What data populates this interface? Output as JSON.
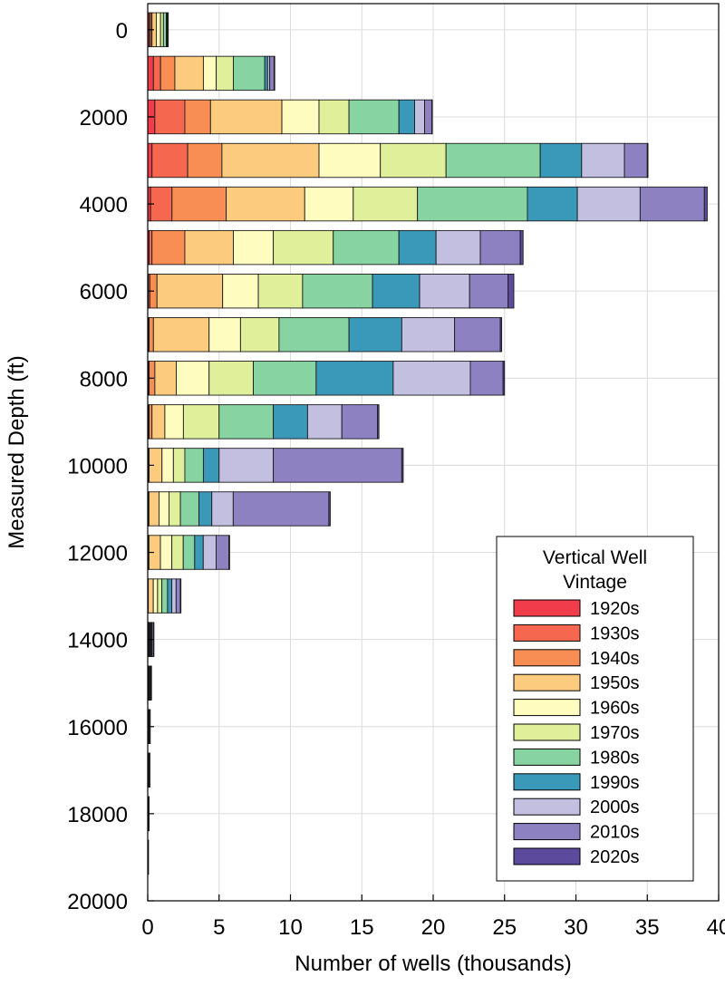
{
  "chart_data": {
    "type": "bar",
    "orientation": "horizontal",
    "stacked": true,
    "xlabel": "Number of wells (thousands)",
    "ylabel": "Measured Depth (ft)",
    "xlim": [
      0,
      40
    ],
    "ylim": [
      20000,
      -600
    ],
    "x_ticks": [
      "0",
      "5",
      "10",
      "15",
      "20",
      "25",
      "30",
      "35",
      "40"
    ],
    "y_ticks": [
      "0",
      "2000",
      "4000",
      "6000",
      "8000",
      "10000",
      "12000",
      "14000",
      "16000",
      "18000",
      "20000"
    ],
    "grid": true,
    "legend": {
      "title_lines": [
        "Vertical Well",
        "Vintage"
      ],
      "position": "bottom-right"
    },
    "depths": [
      0,
      1000,
      2000,
      3000,
      4000,
      5000,
      6000,
      7000,
      8000,
      9000,
      10000,
      11000,
      12000,
      13000,
      14000,
      15000,
      16000,
      17000,
      18000,
      19000,
      20000
    ],
    "series": [
      {
        "name": "1920s",
        "color": "#f03c4b",
        "values": [
          0.1,
          0.4,
          0.5,
          0.3,
          0.2,
          0.1,
          0.05,
          0.05,
          0.05,
          0.05,
          0.02,
          0.02,
          0.02,
          0.01,
          0.01,
          0.01,
          0.0,
          0.0,
          0.0,
          0.0,
          0.0
        ]
      },
      {
        "name": "1930s",
        "color": "#f5684f",
        "values": [
          0.1,
          0.5,
          2.1,
          2.5,
          1.5,
          0.2,
          0.1,
          0.05,
          0.05,
          0.05,
          0.02,
          0.02,
          0.02,
          0.01,
          0.01,
          0.01,
          0.0,
          0.0,
          0.0,
          0.0,
          0.0
        ]
      },
      {
        "name": "1940s",
        "color": "#f98e55",
        "values": [
          0.1,
          1.0,
          1.8,
          2.4,
          3.8,
          2.3,
          0.5,
          0.3,
          0.4,
          0.2,
          0.06,
          0.05,
          0.05,
          0.02,
          0.02,
          0.01,
          0.0,
          0.0,
          0.0,
          0.0,
          0.0
        ]
      },
      {
        "name": "1950s",
        "color": "#fdcb7e",
        "values": [
          0.3,
          2.0,
          5.0,
          6.8,
          5.5,
          3.4,
          4.6,
          3.9,
          1.5,
          0.9,
          0.9,
          0.7,
          0.8,
          0.35,
          0.04,
          0.02,
          0.02,
          0.01,
          0.0,
          0.0,
          0.0
        ]
      },
      {
        "name": "1960s",
        "color": "#fefcbf",
        "values": [
          0.3,
          0.9,
          2.6,
          4.3,
          3.4,
          2.8,
          2.5,
          2.2,
          2.3,
          1.3,
          0.8,
          0.7,
          0.8,
          0.3,
          0.03,
          0.02,
          0.01,
          0.01,
          0.0,
          0.0,
          0.0
        ]
      },
      {
        "name": "1970s",
        "color": "#dfef9a",
        "values": [
          0.2,
          1.2,
          2.1,
          4.6,
          4.5,
          4.2,
          3.1,
          2.7,
          3.1,
          2.5,
          0.8,
          0.8,
          0.8,
          0.3,
          0.04,
          0.02,
          0.01,
          0.01,
          0.0,
          0.0,
          0.0
        ]
      },
      {
        "name": "1980s",
        "color": "#88d3a2",
        "values": [
          0.2,
          2.2,
          3.5,
          6.6,
          7.7,
          4.6,
          4.9,
          4.9,
          4.4,
          3.8,
          1.3,
          1.3,
          0.8,
          0.4,
          0.05,
          0.03,
          0.02,
          0.01,
          0.01,
          0.0,
          0.0
        ]
      },
      {
        "name": "1990s",
        "color": "#3a98b9",
        "values": [
          0.05,
          0.2,
          1.1,
          2.9,
          3.5,
          2.6,
          3.3,
          3.7,
          5.4,
          2.4,
          1.1,
          0.9,
          0.6,
          0.3,
          0.05,
          0.03,
          0.02,
          0.01,
          0.01,
          0.0,
          0.0
        ]
      },
      {
        "name": "2000s",
        "color": "#c2bfe0",
        "values": [
          0.05,
          0.15,
          0.7,
          3.0,
          4.4,
          3.1,
          3.5,
          3.7,
          5.4,
          2.4,
          3.8,
          1.5,
          0.9,
          0.3,
          0.05,
          0.03,
          0.02,
          0.02,
          0.01,
          0.0,
          0.0
        ]
      },
      {
        "name": "2010s",
        "color": "#8d81c1",
        "values": [
          0.02,
          0.3,
          0.5,
          1.6,
          4.5,
          2.8,
          2.7,
          3.2,
          2.3,
          2.5,
          9.0,
          6.7,
          0.9,
          0.3,
          0.1,
          0.05,
          0.04,
          0.05,
          0.03,
          0.02,
          0.0
        ]
      },
      {
        "name": "2020s",
        "color": "#5c4a9c",
        "values": [
          0.0,
          0.05,
          0.02,
          0.05,
          0.2,
          0.2,
          0.4,
          0.1,
          0.1,
          0.1,
          0.1,
          0.1,
          0.05,
          0.02,
          0.02,
          0.01,
          0.01,
          0.01,
          0.01,
          0.01,
          0.0
        ]
      }
    ]
  }
}
